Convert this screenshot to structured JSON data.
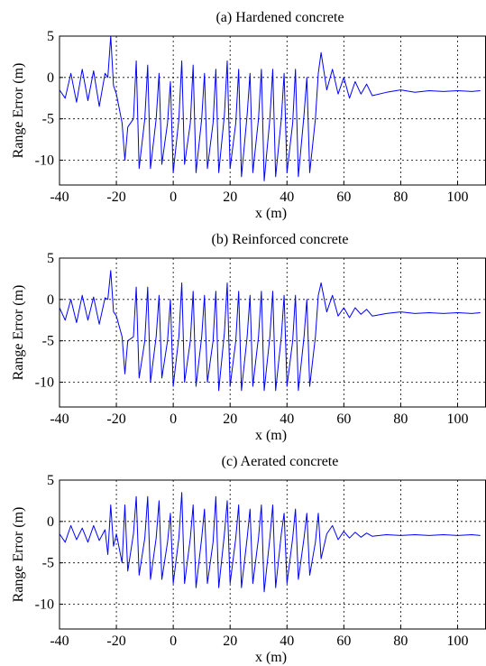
{
  "chart_data": [
    {
      "type": "line",
      "title": "(a) Hardened concrete",
      "xlabel": "x (m)",
      "ylabel": "Range Error (m)",
      "xlim": [
        -40,
        110
      ],
      "ylim": [
        -13,
        5
      ],
      "xticks": [
        -40,
        -20,
        0,
        20,
        40,
        60,
        80,
        100
      ],
      "yticks": [
        5,
        0,
        -5,
        -10
      ],
      "grid": true,
      "line_color": "#0000ff",
      "x": [
        -40,
        -38,
        -36,
        -34,
        -32,
        -30,
        -28,
        -26,
        -24,
        -23,
        -22,
        -21,
        -20,
        -18,
        -17,
        -16,
        -14,
        -13,
        -12,
        -10,
        -9,
        -8,
        -6,
        -5,
        -4,
        -2,
        -1,
        0,
        2,
        3,
        4,
        6,
        7,
        8,
        10,
        11,
        12,
        14,
        15,
        16,
        18,
        19,
        20,
        22,
        23,
        24,
        26,
        27,
        28,
        30,
        31,
        32,
        34,
        35,
        36,
        38,
        39,
        40,
        42,
        43,
        44,
        46,
        47,
        48,
        50,
        51,
        52,
        54,
        56,
        58,
        60,
        62,
        64,
        66,
        68,
        70,
        75,
        80,
        85,
        90,
        95,
        100,
        105,
        108
      ],
      "values": [
        -1.5,
        -2.5,
        0.5,
        -3,
        1,
        -2.8,
        0.8,
        -3.5,
        0.5,
        0,
        5,
        -1,
        -2,
        -5.5,
        -10,
        -6,
        -5,
        2,
        -11,
        -5,
        1.5,
        -11,
        -5,
        0.5,
        -10.5,
        -5.5,
        -0.5,
        -11.5,
        -5,
        2,
        -10.5,
        -5.5,
        1.5,
        -11.5,
        -5,
        0.5,
        -11,
        -5.5,
        1,
        -11.5,
        -4.5,
        2,
        -11,
        -5.5,
        1,
        -12,
        -4.5,
        0.5,
        -11.5,
        -5,
        1,
        -12.5,
        -5,
        1,
        -12,
        -5,
        0.5,
        -11.5,
        -5.5,
        1,
        -12,
        -4.5,
        0,
        -11.5,
        -5,
        0.5,
        3,
        -1.5,
        1,
        -2,
        0,
        -2.5,
        -0.5,
        -2,
        -0.8,
        -2.2,
        -1.8,
        -1.5,
        -1.8,
        -1.6,
        -1.7,
        -1.6,
        -1.7,
        -1.6
      ]
    },
    {
      "type": "line",
      "title": "(b) Reinforced concrete",
      "xlabel": "x (m)",
      "ylabel": "Range Error (m)",
      "xlim": [
        -40,
        110
      ],
      "ylim": [
        -13,
        5
      ],
      "xticks": [
        -40,
        -20,
        0,
        20,
        40,
        60,
        80,
        100
      ],
      "yticks": [
        5,
        0,
        -5,
        -10
      ],
      "grid": true,
      "line_color": "#0000ff",
      "x": [
        -40,
        -38,
        -36,
        -34,
        -32,
        -30,
        -28,
        -26,
        -24,
        -23,
        -22,
        -21,
        -20,
        -18,
        -17,
        -16,
        -14,
        -13,
        -12,
        -10,
        -9,
        -8,
        -6,
        -5,
        -4,
        -2,
        -1,
        0,
        2,
        3,
        4,
        6,
        7,
        8,
        10,
        11,
        12,
        14,
        15,
        16,
        18,
        19,
        20,
        22,
        23,
        24,
        26,
        27,
        28,
        30,
        31,
        32,
        34,
        35,
        36,
        38,
        39,
        40,
        42,
        43,
        44,
        46,
        47,
        48,
        50,
        51,
        52,
        54,
        56,
        58,
        60,
        62,
        64,
        66,
        68,
        70,
        75,
        80,
        85,
        90,
        95,
        100,
        105,
        108
      ],
      "values": [
        -1,
        -2.5,
        0,
        -2.8,
        0.5,
        -2.5,
        0.3,
        -3,
        0.2,
        0,
        3.5,
        -1.5,
        -2,
        -4.5,
        -9,
        -5,
        -4.5,
        1.5,
        -9.5,
        -5,
        1.5,
        -10,
        -4.5,
        0.5,
        -9.5,
        -5,
        0,
        -10.5,
        -4.5,
        2,
        -10,
        -5,
        1,
        -10.5,
        -4.5,
        0.5,
        -10,
        -5,
        1,
        -11,
        -4,
        2,
        -10.5,
        -5,
        1,
        -11,
        -4.5,
        0.5,
        -10.5,
        -4.5,
        1,
        -11,
        -4.5,
        1,
        -11,
        -4.5,
        0.5,
        -10.5,
        -5,
        0.5,
        -11,
        -4.5,
        0,
        -10.5,
        -4.5,
        0.5,
        2,
        -1.5,
        0.5,
        -2,
        -1,
        -2.2,
        -1,
        -1.8,
        -1.2,
        -2,
        -1.7,
        -1.5,
        -1.7,
        -1.6,
        -1.7,
        -1.6,
        -1.7,
        -1.6
      ]
    },
    {
      "type": "line",
      "title": "(c) Aerated concrete",
      "xlabel": "x (m)",
      "ylabel": "Range Error (m)",
      "xlim": [
        -40,
        110
      ],
      "ylim": [
        -13,
        5
      ],
      "xticks": [
        -40,
        -20,
        0,
        20,
        40,
        60,
        80,
        100
      ],
      "yticks": [
        5,
        0,
        -5,
        -10
      ],
      "grid": true,
      "line_color": "#0000ff",
      "x": [
        -40,
        -38,
        -36,
        -34,
        -32,
        -30,
        -28,
        -26,
        -24,
        -23,
        -22,
        -21,
        -20,
        -18,
        -17,
        -16,
        -14,
        -13,
        -12,
        -10,
        -9,
        -8,
        -6,
        -5,
        -4,
        -2,
        -1,
        0,
        2,
        3,
        4,
        6,
        7,
        8,
        10,
        11,
        12,
        14,
        15,
        16,
        18,
        19,
        20,
        22,
        23,
        24,
        26,
        27,
        28,
        30,
        31,
        32,
        34,
        35,
        36,
        38,
        39,
        40,
        42,
        43,
        44,
        46,
        47,
        48,
        50,
        51,
        52,
        54,
        56,
        58,
        60,
        62,
        64,
        66,
        68,
        70,
        75,
        80,
        85,
        90,
        95,
        100,
        105,
        108
      ],
      "values": [
        -1.5,
        -2.5,
        -0.5,
        -2.2,
        -0.8,
        -2.5,
        -0.5,
        -2.3,
        -1,
        -4,
        2,
        -3,
        -1.5,
        -5,
        2,
        -6,
        -1.5,
        3,
        -6.5,
        -2,
        3,
        -7,
        -2,
        2.5,
        -7,
        -2.5,
        1,
        -7.5,
        -2,
        3.5,
        -7.5,
        -2,
        2,
        -8,
        -2,
        1.5,
        -7.5,
        -2.5,
        3,
        -8,
        -1.5,
        2.5,
        -7.5,
        -2,
        2,
        -8,
        -2,
        1.5,
        -7.5,
        -2,
        2,
        -8.5,
        -2,
        2,
        -8,
        -1.5,
        1,
        -7.5,
        -2,
        1.5,
        -7,
        -2,
        1,
        -6.5,
        -2.5,
        1,
        -4.5,
        -1.5,
        -0.5,
        -2.2,
        -1.2,
        -2,
        -1.3,
        -1.9,
        -1.4,
        -1.8,
        -1.6,
        -1.7,
        -1.6,
        -1.7,
        -1.6,
        -1.7,
        -1.6,
        -1.7
      ]
    }
  ]
}
